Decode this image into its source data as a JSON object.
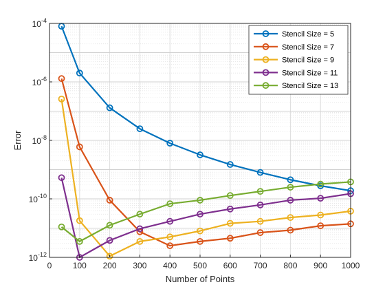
{
  "chart_data": {
    "type": "line",
    "title": "",
    "xlabel": "Number of Points",
    "ylabel": "Error",
    "xlim": [
      0,
      1000
    ],
    "ylim": [
      1e-12,
      0.0001
    ],
    "yscale": "log",
    "grid": true,
    "minor_grid": true,
    "legend_position": "top-right",
    "x_ticks": [
      0,
      100,
      200,
      300,
      400,
      500,
      600,
      700,
      800,
      900,
      1000
    ],
    "x_tick_labels": [
      "0",
      "100",
      "200",
      "300",
      "400",
      "500",
      "600",
      "700",
      "800",
      "900",
      "1000"
    ],
    "y_ticks": [
      1e-12,
      1e-10,
      1e-08,
      1e-06,
      0.0001
    ],
    "y_tick_labels": [
      {
        "base": "10",
        "exp": "-12"
      },
      {
        "base": "10",
        "exp": "-10"
      },
      {
        "base": "10",
        "exp": "-8"
      },
      {
        "base": "10",
        "exp": "-6"
      },
      {
        "base": "10",
        "exp": "-4"
      }
    ],
    "x": [
      40,
      100,
      200,
      300,
      400,
      500,
      600,
      700,
      800,
      900,
      1000
    ],
    "series": [
      {
        "name": "Stencil Size = 5",
        "color": "#0072BD",
        "values": [
          8e-05,
          2e-06,
          1.3e-07,
          2.5e-08,
          8e-09,
          3.2e-09,
          1.5e-09,
          8e-10,
          4.5e-10,
          2.8e-10,
          1.9e-10
        ]
      },
      {
        "name": "Stencil Size = 7",
        "color": "#D95319",
        "values": [
          1.3e-06,
          6e-09,
          9e-11,
          7.5e-12,
          2.5e-12,
          3.5e-12,
          4.5e-12,
          7e-12,
          8.5e-12,
          1.2e-11,
          1.4e-11
        ]
      },
      {
        "name": "Stencil Size = 9",
        "color": "#EDB120",
        "values": [
          2.6e-07,
          1.8e-11,
          1.1e-12,
          3.5e-12,
          5e-12,
          8e-12,
          1.45e-11,
          1.7e-11,
          2.3e-11,
          2.8e-11,
          3.8e-11
        ]
      },
      {
        "name": "Stencil Size = 11",
        "color": "#7E2F8E",
        "values": [
          5.3e-10,
          1e-12,
          3.8e-12,
          9.5e-12,
          1.7e-11,
          3e-11,
          4.5e-11,
          6.2e-11,
          9e-11,
          1.05e-10,
          1.5e-10
        ]
      },
      {
        "name": "Stencil Size = 13",
        "color": "#77AC30",
        "values": [
          1.1e-11,
          3.5e-12,
          1.25e-11,
          3e-11,
          6.8e-11,
          9e-11,
          1.3e-10,
          1.8e-10,
          2.5e-10,
          3.2e-10,
          3.8e-10
        ]
      }
    ]
  }
}
